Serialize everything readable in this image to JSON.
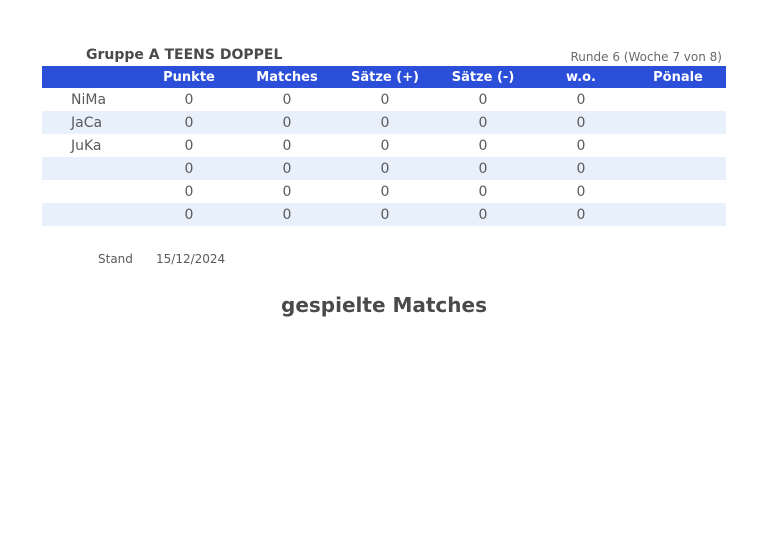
{
  "header": {
    "group_title": "Gruppe A TEENS DOPPEL",
    "round_info": "Runde 6 (Woche 7 von 8)"
  },
  "table": {
    "columns": [
      "",
      "Punkte",
      "Matches",
      "Sätze (+)",
      "Sätze (-)",
      "w.o.",
      "Pönale"
    ],
    "rows": [
      {
        "team": "NiMa",
        "punkte": "0",
        "matches": "0",
        "saetze_plus": "0",
        "saetze_minus": "0",
        "wo": "0",
        "poenale": ""
      },
      {
        "team": "JaCa",
        "punkte": "0",
        "matches": "0",
        "saetze_plus": "0",
        "saetze_minus": "0",
        "wo": "0",
        "poenale": ""
      },
      {
        "team": "JuKa",
        "punkte": "0",
        "matches": "0",
        "saetze_plus": "0",
        "saetze_minus": "0",
        "wo": "0",
        "poenale": ""
      },
      {
        "team": "",
        "punkte": "0",
        "matches": "0",
        "saetze_plus": "0",
        "saetze_minus": "0",
        "wo": "0",
        "poenale": ""
      },
      {
        "team": "",
        "punkte": "0",
        "matches": "0",
        "saetze_plus": "0",
        "saetze_minus": "0",
        "wo": "0",
        "poenale": ""
      },
      {
        "team": "",
        "punkte": "0",
        "matches": "0",
        "saetze_plus": "0",
        "saetze_minus": "0",
        "wo": "0",
        "poenale": ""
      }
    ]
  },
  "footer": {
    "stand_label": "Stand",
    "stand_date": "15/12/2024",
    "matches_heading": "gespielte Matches"
  },
  "colors": {
    "header_bg": "#2b4fd9",
    "alt_row_bg": "#e8f0fc"
  }
}
